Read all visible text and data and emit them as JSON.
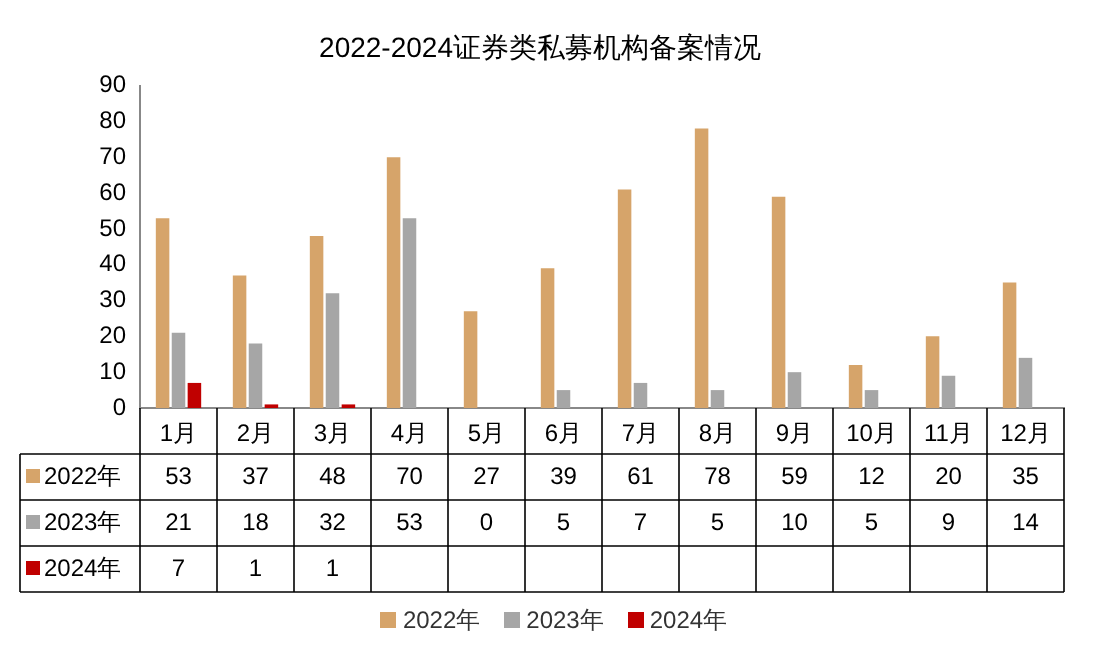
{
  "chart_data": {
    "type": "bar",
    "title": "2022-2024证券类私募机构备案情况",
    "categories": [
      "1月",
      "2月",
      "3月",
      "4月",
      "5月",
      "6月",
      "7月",
      "8月",
      "9月",
      "10月",
      "11月",
      "12月"
    ],
    "series": [
      {
        "name": "2022年",
        "color": "#d6a46a",
        "values": [
          53,
          37,
          48,
          70,
          27,
          39,
          61,
          78,
          59,
          12,
          20,
          35
        ]
      },
      {
        "name": "2023年",
        "color": "#a6a6a6",
        "values": [
          21,
          18,
          32,
          53,
          0,
          5,
          7,
          5,
          10,
          5,
          9,
          14
        ]
      },
      {
        "name": "2024年",
        "color": "#c00000",
        "values": [
          7,
          1,
          1,
          null,
          null,
          null,
          null,
          null,
          null,
          null,
          null,
          null
        ]
      }
    ],
    "ylim": [
      0,
      90
    ],
    "yticks": [
      0,
      10,
      20,
      30,
      40,
      50,
      60,
      70,
      80,
      90
    ],
    "grid": false,
    "legend": "bottom",
    "data_labels": true
  }
}
